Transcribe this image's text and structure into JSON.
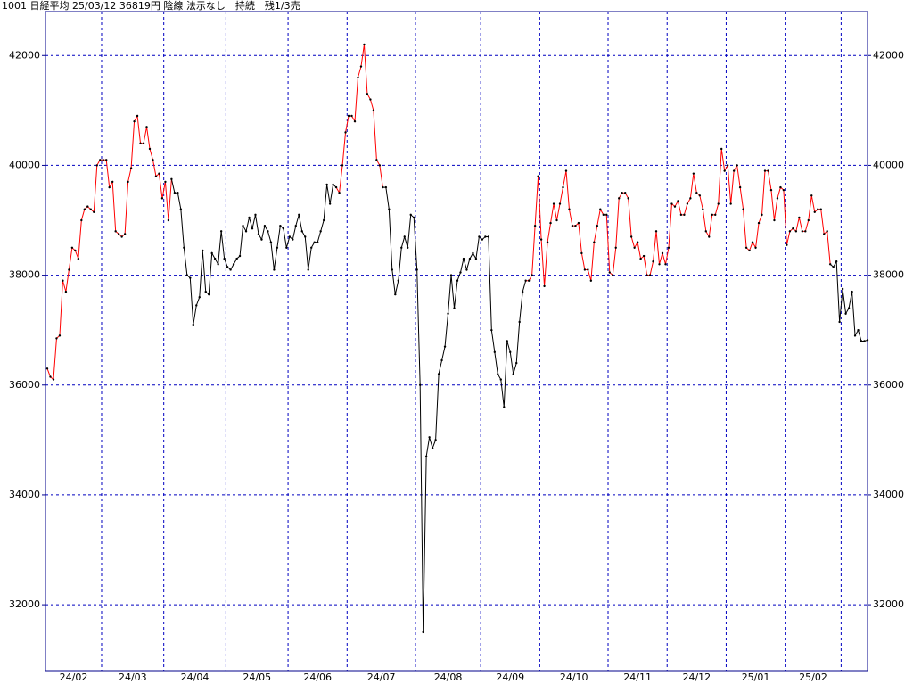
{
  "chart_data": {
    "type": "line",
    "title": "1001 日経平均 25/03/12 36819円 陰線 法示なし　持続　残1/3売",
    "months": [
      "24/02",
      "24/03",
      "24/04",
      "24/05",
      "24/06",
      "24/07",
      "24/08",
      "24/09",
      "24/10",
      "24/11",
      "24/12",
      "25/01",
      "25/02"
    ],
    "month_starts": [
      0,
      18,
      38,
      58,
      78,
      97,
      119,
      140,
      159,
      181,
      200,
      219,
      238,
      256
    ],
    "values": [
      36300,
      36150,
      36100,
      36850,
      36900,
      37900,
      37700,
      38100,
      38500,
      38450,
      38300,
      39000,
      39200,
      39250,
      39200,
      39150,
      40000,
      40100,
      40100,
      40100,
      39600,
      39700,
      38800,
      38750,
      38700,
      38750,
      39700,
      39950,
      40800,
      40900,
      40400,
      40400,
      40700,
      40300,
      40100,
      39800,
      39850,
      39400,
      39700,
      39000,
      39750,
      39500,
      39500,
      39200,
      38500,
      38000,
      37950,
      37100,
      37450,
      37600,
      38450,
      37700,
      37650,
      38400,
      38300,
      38200,
      38800,
      38300,
      38150,
      38100,
      38200,
      38300,
      38350,
      38900,
      38800,
      39050,
      38850,
      39100,
      38750,
      38650,
      38900,
      38800,
      38600,
      38100,
      38500,
      38900,
      38850,
      38500,
      38700,
      38650,
      38900,
      39100,
      38800,
      38700,
      38100,
      38500,
      38600,
      38600,
      38800,
      39000,
      39650,
      39300,
      39650,
      39600,
      39500,
      40000,
      40600,
      40900,
      40900,
      40800,
      41600,
      41800,
      42200,
      41300,
      41200,
      41000,
      40100,
      40000,
      39600,
      39600,
      39200,
      38100,
      37650,
      37900,
      38500,
      38700,
      38500,
      39100,
      39050,
      38100,
      36000,
      31500,
      34700,
      35050,
      34850,
      35000,
      36200,
      36450,
      36700,
      37300,
      38000,
      37400,
      37900,
      38050,
      38300,
      38100,
      38300,
      38400,
      38300,
      38700,
      38650,
      38700,
      38700,
      37000,
      36600,
      36200,
      36100,
      35600,
      36800,
      36600,
      36200,
      36400,
      37150,
      37700,
      37900,
      37900,
      38000,
      38900,
      39800,
      38650,
      37800,
      38600,
      38950,
      39300,
      39000,
      39300,
      39600,
      39900,
      39200,
      38900,
      38900,
      38950,
      38400,
      38100,
      38100,
      37900,
      38600,
      38900,
      39200,
      39100,
      39100,
      38050,
      38000,
      38500,
      39400,
      39500,
      39500,
      39400,
      38700,
      38500,
      38600,
      38300,
      38350,
      38000,
      38000,
      38250,
      38800,
      38200,
      38400,
      38200,
      38500,
      39300,
      39250,
      39350,
      39100,
      39100,
      39300,
      39400,
      39850,
      39500,
      39450,
      39200,
      38800,
      38700,
      39100,
      39100,
      39300,
      40300,
      39900,
      40000,
      39300,
      39900,
      40000,
      39600,
      39200,
      38500,
      38450,
      38600,
      38500,
      38950,
      39100,
      39900,
      39900,
      39550,
      39000,
      39400,
      39600,
      39550,
      38550,
      38800,
      38850,
      38800,
      39050,
      38800,
      38800,
      39000,
      39450,
      39150,
      39200,
      39200,
      38750,
      38800,
      38200,
      38150,
      38250,
      37150,
      37750,
      37300,
      37400,
      37700,
      36900,
      37000,
      36800,
      36800,
      36819
    ],
    "colors": [
      "red",
      "red",
      "red",
      "red",
      "red",
      "red",
      "red",
      "red",
      "red",
      "red",
      "red",
      "red",
      "red",
      "red",
      "red",
      "red",
      "red",
      "red",
      "red",
      "red",
      "red",
      "red",
      "red",
      "red",
      "red",
      "red",
      "red",
      "red",
      "red",
      "red",
      "red",
      "red",
      "red",
      "red",
      "red",
      "red",
      "red",
      "red",
      "red",
      "red",
      "red",
      "black",
      "black",
      "black",
      "black",
      "black",
      "black",
      "black",
      "black",
      "black",
      "black",
      "black",
      "black",
      "black",
      "black",
      "black",
      "black",
      "black",
      "black",
      "black",
      "black",
      "black",
      "black",
      "black",
      "black",
      "black",
      "black",
      "black",
      "black",
      "black",
      "black",
      "black",
      "black",
      "black",
      "black",
      "black",
      "black",
      "black",
      "black",
      "black",
      "black",
      "black",
      "black",
      "black",
      "black",
      "black",
      "black",
      "black",
      "black",
      "black",
      "black",
      "black",
      "black",
      "black",
      "red",
      "red",
      "red",
      "red",
      "red",
      "red",
      "red",
      "red",
      "red",
      "red",
      "red",
      "red",
      "red",
      "red",
      "red",
      "black",
      "black",
      "black",
      "black",
      "black",
      "black",
      "black",
      "black",
      "black",
      "black",
      "black",
      "black",
      "black",
      "black",
      "black",
      "black",
      "black",
      "black",
      "black",
      "black",
      "black",
      "black",
      "black",
      "black",
      "black",
      "black",
      "black",
      "black",
      "black",
      "black",
      "black",
      "black",
      "black",
      "black",
      "black",
      "black",
      "black",
      "black",
      "black",
      "black",
      "black",
      "black",
      "black",
      "black",
      "black",
      "black",
      "red",
      "red",
      "red",
      "red",
      "red",
      "red",
      "red",
      "red",
      "red",
      "red",
      "red",
      "red",
      "red",
      "red",
      "red",
      "red",
      "red",
      "red",
      "red",
      "red",
      "red",
      "red",
      "red",
      "red",
      "red",
      "red",
      "red",
      "red",
      "red",
      "red",
      "red",
      "red",
      "red",
      "red",
      "red",
      "red",
      "red",
      "red",
      "red",
      "red",
      "red",
      "red",
      "red",
      "red",
      "red",
      "red",
      "red",
      "red",
      "red",
      "red",
      "red",
      "red",
      "red",
      "red",
      "red",
      "red",
      "red",
      "red",
      "red",
      "red",
      "red",
      "red",
      "red",
      "red",
      "red",
      "red",
      "red",
      "red",
      "red",
      "red",
      "red",
      "red",
      "red",
      "red",
      "red",
      "red",
      "red",
      "red",
      "red",
      "red",
      "red",
      "red",
      "red",
      "red",
      "red",
      "red",
      "red",
      "red",
      "red",
      "red",
      "red",
      "red",
      "red",
      "red",
      "red",
      "red",
      "red",
      "red",
      "black",
      "black",
      "black",
      "black",
      "black",
      "black",
      "black",
      "black",
      "black",
      "black",
      "black",
      "black"
    ],
    "ylim": [
      30800,
      42800
    ],
    "yticks": [
      32000,
      34000,
      36000,
      38000,
      40000,
      42000
    ],
    "grid": true,
    "frame_color": "#00008b",
    "grid_color": "#0000c0"
  }
}
